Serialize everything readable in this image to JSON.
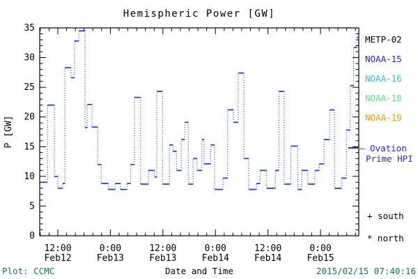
{
  "title": "Hemispheric Power [GW]",
  "legend": {
    "satellites": [
      {
        "label": "METP-02",
        "color": "#000000"
      },
      {
        "label": "NOAA-15",
        "color": "#2424e0"
      },
      {
        "label": "NOAA-16",
        "color": "#33bbee"
      },
      {
        "label": "NOAA-18",
        "color": "#5fdd82"
      },
      {
        "label": "NOAA-19",
        "color": "#ff9900"
      }
    ],
    "ovation_line1": "— Ovation",
    "ovation_line2": "Prime HPI",
    "ovation_color": "#2424e0",
    "south_marker": "+ south",
    "north_marker": "* north"
  },
  "footer": {
    "left": "Plot: CCMC",
    "center": "Date and Time",
    "right": "2015/02/15 07:40:16",
    "accent_color": "#1b6e5e"
  },
  "chart_data": {
    "type": "line",
    "style": "step",
    "title": "Hemispheric Power [GW]",
    "xlabel": "Date and Time",
    "ylabel": "P [GW]",
    "ylim": [
      0,
      35
    ],
    "y_major_ticks": [
      0,
      5,
      10,
      15,
      20,
      25,
      30,
      35
    ],
    "y_minor_step": 1,
    "x_hours_range": [
      7.86,
      80.75
    ],
    "x_minor_step_hours": 2,
    "x_major_ticks": [
      {
        "hour": 12,
        "time": "12:00",
        "date": "Feb12"
      },
      {
        "hour": 24,
        "time": "0:00",
        "date": "Feb13"
      },
      {
        "hour": 36,
        "time": "12:00",
        "date": "Feb13"
      },
      {
        "hour": 48,
        "time": "0:00",
        "date": "Feb14"
      },
      {
        "hour": 60,
        "time": "12:00",
        "date": "Feb14"
      },
      {
        "hour": 72,
        "time": "0:00",
        "date": "Feb15"
      }
    ],
    "grid": false,
    "line_color": "#1a47d6",
    "series": [
      {
        "name": "Ovation Prime HPI",
        "units": "GW",
        "x_units": "hours since 2015-02-12 00:00",
        "step_points": [
          [
            7.9,
            9.0
          ],
          [
            9.6,
            22.0
          ],
          [
            11.2,
            10.0
          ],
          [
            12.0,
            8.0
          ],
          [
            13.1,
            8.8
          ],
          [
            13.6,
            28.3
          ],
          [
            15.0,
            26.6
          ],
          [
            15.8,
            32.8
          ],
          [
            16.8,
            34.5
          ],
          [
            18.2,
            18.2
          ],
          [
            18.7,
            22.1
          ],
          [
            19.8,
            18.3
          ],
          [
            21.1,
            12.0
          ],
          [
            21.9,
            8.8
          ],
          [
            23.5,
            7.8
          ],
          [
            25.1,
            8.8
          ],
          [
            26.3,
            7.8
          ],
          [
            27.8,
            8.8
          ],
          [
            28.6,
            12.0
          ],
          [
            29.5,
            23.3
          ],
          [
            30.9,
            8.7
          ],
          [
            32.7,
            11.0
          ],
          [
            34.1,
            9.9
          ],
          [
            34.6,
            24.3
          ],
          [
            35.9,
            8.7
          ],
          [
            37.5,
            15.3
          ],
          [
            38.3,
            14.2
          ],
          [
            39.1,
            11.0
          ],
          [
            40.2,
            16.2
          ],
          [
            41.0,
            19.1
          ],
          [
            41.8,
            8.7
          ],
          [
            42.9,
            13.0
          ],
          [
            43.8,
            11.0
          ],
          [
            44.9,
            16.2
          ],
          [
            45.4,
            12.1
          ],
          [
            46.9,
            15.3
          ],
          [
            47.8,
            7.8
          ],
          [
            49.7,
            9.7
          ],
          [
            50.8,
            21.2
          ],
          [
            52.1,
            19.1
          ],
          [
            53.2,
            27.4
          ],
          [
            54.5,
            13.0
          ],
          [
            55.6,
            7.8
          ],
          [
            57.4,
            8.8
          ],
          [
            58.2,
            11.0
          ],
          [
            59.7,
            8.0
          ],
          [
            61.7,
            11.0
          ],
          [
            62.5,
            24.3
          ],
          [
            63.7,
            8.7
          ],
          [
            65.2,
            15.1
          ],
          [
            66.8,
            7.8
          ],
          [
            67.7,
            11.0
          ],
          [
            69.1,
            8.7
          ],
          [
            70.7,
            11.0
          ],
          [
            71.7,
            12.1
          ],
          [
            72.8,
            16.2
          ],
          [
            74.1,
            21.2
          ],
          [
            75.2,
            8.0
          ],
          [
            76.8,
            9.7
          ],
          [
            77.9,
            17.8
          ],
          [
            78.8,
            25.3
          ],
          [
            79.6,
            31.7
          ],
          [
            80.3,
            33.4
          ],
          [
            80.7,
            33.4
          ]
        ]
      }
    ]
  }
}
